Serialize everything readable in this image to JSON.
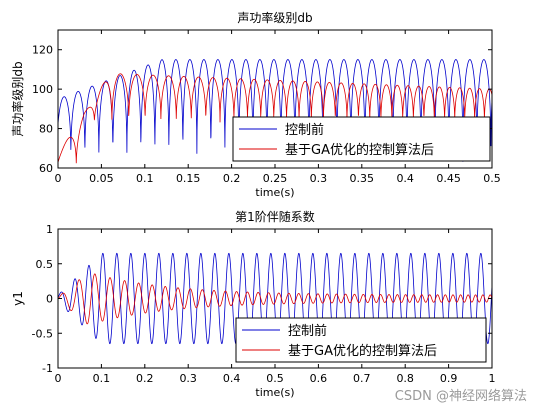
{
  "chart_data": [
    {
      "type": "line",
      "title": "声功率级别db",
      "xlabel": "time(s)",
      "ylabel": "声功率级别db",
      "xlim": [
        0,
        0.5
      ],
      "ylim": [
        60,
        130
      ],
      "xticks": [
        0,
        0.05,
        0.1,
        0.15,
        0.2,
        0.25,
        0.3,
        0.35,
        0.4,
        0.45,
        0.5
      ],
      "xtick_labels": [
        "0",
        "0.05",
        "0.1",
        "0.15",
        "0.2",
        "0.25",
        "0.3",
        "0.35",
        "0.4",
        "0.45",
        "0.5"
      ],
      "yticks": [
        60,
        80,
        100,
        120
      ],
      "ytick_labels": [
        "60",
        "80",
        "100",
        "120"
      ],
      "grid": false,
      "legend_position": "bottom-right",
      "series": [
        {
          "name": "控制前",
          "color": "#0000cc",
          "waveform": "rectified_sine_db",
          "peak_db_start": 95,
          "peak_db_end": 115,
          "peak_db_settle_time": 0.12,
          "dip_db": 62,
          "arch_frequency_hz": 62
        },
        {
          "name": "基于GA优化的控制算法后",
          "color": "#dd0000",
          "waveform": "rectified_sine_db",
          "peak_db_start": 107,
          "peak_db_end": 100,
          "peak_db_max": 108,
          "peak_db_max_time": 0.06,
          "dip_db": 82,
          "arch_frequency_hz_start": 45,
          "arch_frequency_hz_end": 90
        }
      ]
    },
    {
      "type": "line",
      "title": "第1阶伴随系数",
      "xlabel": "time(s)",
      "ylabel": "y1",
      "xlim": [
        0,
        1
      ],
      "ylim": [
        -1,
        1
      ],
      "xticks": [
        0,
        0.1,
        0.2,
        0.3,
        0.4,
        0.5,
        0.6,
        0.7,
        0.8,
        0.9,
        1
      ],
      "xtick_labels": [
        "0",
        "0.1",
        "0.2",
        "0.3",
        "0.4",
        "0.5",
        "0.6",
        "0.7",
        "0.8",
        "0.9",
        "1"
      ],
      "yticks": [
        -1,
        -0.5,
        0,
        0.5,
        1
      ],
      "ytick_labels": [
        "-1",
        "-0.5",
        "0",
        "0.5",
        "1"
      ],
      "grid": false,
      "legend_position": "bottom-right",
      "series": [
        {
          "name": "控制前",
          "color": "#0000cc",
          "waveform": "sine",
          "amplitude_start": 0.05,
          "amplitude_end": 0.65,
          "amplitude_settle_time": 0.1,
          "frequency_hz": 31
        },
        {
          "name": "基于GA优化的控制算法后",
          "color": "#dd0000",
          "waveform": "sine",
          "amplitude_peak": 0.38,
          "amplitude_peak_time": 0.07,
          "amplitude_end": 0.05,
          "frequency_hz_start": 25,
          "frequency_hz_end": 60
        }
      ]
    }
  ],
  "watermark": "CSDN @神经网络算法"
}
